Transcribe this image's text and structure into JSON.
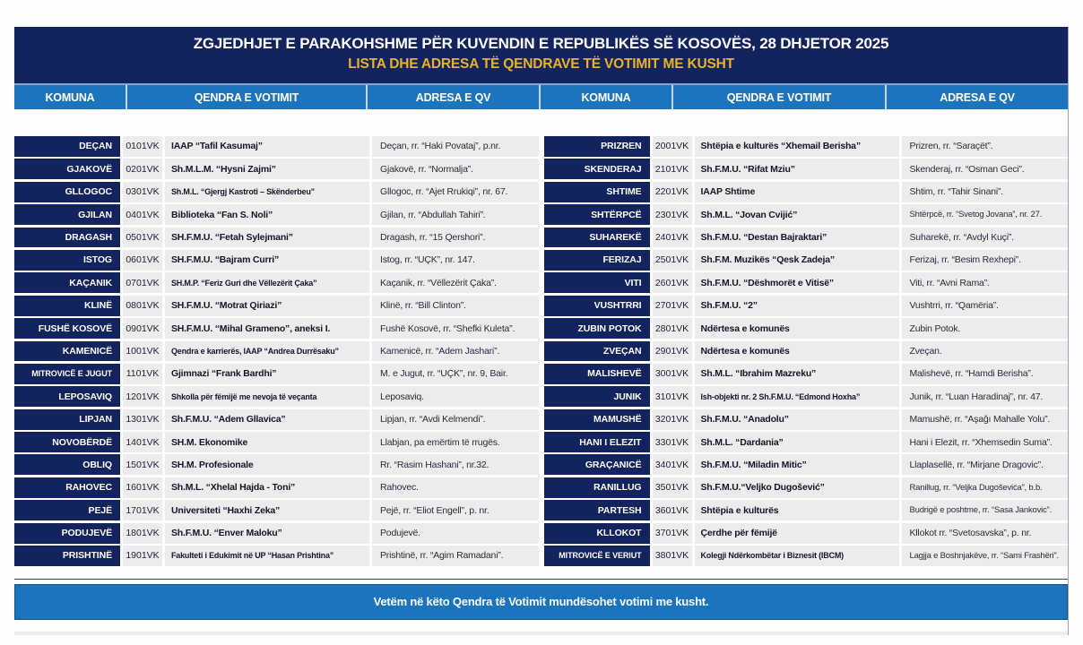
{
  "header": {
    "title": "ZGJEDHJET E PARAKOHSHME PËR KUVENDIN E REPUBLIKËS SË KOSOVËS, 28 DHJETOR 2025",
    "subtitle": "LISTA DHE ADRESA TË QENDRAVE TË VOTIMIT ME KUSHT"
  },
  "columns": {
    "komuna": "KOMUNA",
    "qendra": "QENDRA E VOTIMIT",
    "adresa": "ADRESA E QV"
  },
  "colors": {
    "navy": "#13235d",
    "blue": "#1b74bc",
    "gold": "#e8b22a",
    "cell_bg": "#ececec"
  },
  "left_table": {
    "rows": [
      {
        "komuna": "DEÇAN",
        "code": "0101VK",
        "qendra": "IAAP “Tafil Kasumaj”",
        "adresa": "Deçan, rr. “Haki Povataj”, p.nr."
      },
      {
        "komuna": "GJAKOVË",
        "code": "0201VK",
        "qendra": "Sh.M.L.M. “Hysni Zajmi”",
        "adresa": "Gjakovë, rr. “Normalja”."
      },
      {
        "komuna": "GLLOGOC",
        "code": "0301VK",
        "qendra": "Sh.M.L. “Gjergj Kastroti – Skënderbeu”",
        "adresa": "Gllogoc, rr. “Ajet Rrukiqi”, nr. 67."
      },
      {
        "komuna": "GJILAN",
        "code": "0401VK",
        "qendra": "Biblioteka “Fan S. Noli”",
        "adresa": "Gjilan, rr. “Abdullah Tahiri”."
      },
      {
        "komuna": "DRAGASH",
        "code": "0501VK",
        "qendra": "SH.F.M.U. “Fetah Sylejmani”",
        "adresa": "Dragash, rr. “15 Qershori”."
      },
      {
        "komuna": "ISTOG",
        "code": "0601VK",
        "qendra": "SH.F.M.U. “Bajram Curri”",
        "adresa": "Istog, rr. “UÇK”, nr. 147."
      },
      {
        "komuna": "KAÇANIK",
        "code": "0701VK",
        "qendra": "SH.M.P. “Feriz Guri dhe Vëllezërit Çaka”",
        "adresa": "Kaçanik, rr. “Vëllezërit Çaka”."
      },
      {
        "komuna": "KLINË",
        "code": "0801VK",
        "qendra": "SH.F.M.U. “Motrat Qiriazi”",
        "adresa": "Klinë, rr. “Bill Clinton”."
      },
      {
        "komuna": "FUSHË KOSOVË",
        "code": "0901VK",
        "qendra": "SH.F.M.U. “Mihal Grameno”, aneksi I.",
        "adresa": "Fushë Kosovë, rr. “Shefki Kuleta”."
      },
      {
        "komuna": "KAMENICË",
        "code": "1001VK",
        "qendra": "Qendra e karrierës, IAAP “Andrea Durrësaku”",
        "adresa": "Kamenicë, rr. “Adem Jashari”."
      },
      {
        "komuna": "MITROVICË E JUGUT",
        "code": "1101VK",
        "qendra": "Gjimnazi “Frank Bardhi”",
        "adresa": "M. e Jugut, rr. “UÇK”, nr. 9, Bair."
      },
      {
        "komuna": "LEPOSAVIQ",
        "code": "1201VK",
        "qendra": "Shkolla për fëmijë me nevoja të veçanta",
        "adresa": "Leposaviq."
      },
      {
        "komuna": "LIPJAN",
        "code": "1301VK",
        "qendra": "Sh.F.M.U. “Adem Gllavica”",
        "adresa": "Lipjan, rr. “Avdi Kelmendi”."
      },
      {
        "komuna": "NOVOBËRDË",
        "code": "1401VK",
        "qendra": "SH.M. Ekonomike",
        "adresa": "Llabjan, pa emërtim të rrugës."
      },
      {
        "komuna": "OBLIQ",
        "code": "1501VK",
        "qendra": "SH.M. Profesionale",
        "adresa": "Rr. “Rasim Hashani”, nr.32."
      },
      {
        "komuna": "RAHOVEC",
        "code": "1601VK",
        "qendra": "Sh.M.L. “Xhelal Hajda - Toni”",
        "adresa": "Rahovec."
      },
      {
        "komuna": "PEJË",
        "code": "1701VK",
        "qendra": "Universiteti “Haxhi Zeka”",
        "adresa": "Pejë, rr. “Eliot Engell”, p. nr."
      },
      {
        "komuna": "PODUJEVË",
        "code": "1801VK",
        "qendra": "Sh.F.M.U. “Enver Maloku”",
        "adresa": "Podujevë."
      },
      {
        "komuna": "PRISHTINË",
        "code": "1901VK",
        "qendra": "Fakulteti i Edukimit në UP “Hasan Prishtina”",
        "adresa": "Prishtinë, rr. “Agim Ramadani”."
      }
    ]
  },
  "right_table": {
    "rows": [
      {
        "komuna": "PRIZREN",
        "code": "2001VK",
        "qendra": "Shtëpia e kulturës “Xhemail Berisha”",
        "adresa": "Prizren, rr. “Saraçët”."
      },
      {
        "komuna": "SKENDERAJ",
        "code": "2101VK",
        "qendra": "Sh.F.M.U. “Rifat Mziu”",
        "adresa": "Skenderaj, rr. “Osman Geci”."
      },
      {
        "komuna": "SHTIME",
        "code": "2201VK",
        "qendra": "IAAP Shtime",
        "adresa": "Shtim, rr. “Tahir Sinani”."
      },
      {
        "komuna": "SHTËRPCË",
        "code": "2301VK",
        "qendra": "Sh.M.L. “Jovan Cvijić”",
        "adresa": "Shtërpcë, rr. “Svetog Jovana”, nr. 27."
      },
      {
        "komuna": "SUHAREKË",
        "code": "2401VK",
        "qendra": "Sh.F.M.U. “Destan Bajraktari”",
        "adresa": "Suharekë, rr. “Avdyl Kuçi”."
      },
      {
        "komuna": "FERIZAJ",
        "code": "2501VK",
        "qendra": "Sh.F.M. Muzikës “Qesk Zadeja”",
        "adresa": "Ferizaj, rr. “Besim Rexhepi”."
      },
      {
        "komuna": "VITI",
        "code": "2601VK",
        "qendra": "Sh.F.M.U. “Dëshmorët e Vitisë”",
        "adresa": "Viti, rr. “Avni Rama”."
      },
      {
        "komuna": "VUSHTRRI",
        "code": "2701VK",
        "qendra": "Sh.F.M.U. “2”",
        "adresa": "Vushtrri, rr. “Qamëria”."
      },
      {
        "komuna": "ZUBIN POTOK",
        "code": "2801VK",
        "qendra": "Ndërtesa e komunës",
        "adresa": "Zubin Potok."
      },
      {
        "komuna": "ZVEÇAN",
        "code": "2901VK",
        "qendra": "Ndërtesa e komunës",
        "adresa": "Zveçan."
      },
      {
        "komuna": "MALISHEVË",
        "code": "3001VK",
        "qendra": "Sh.M.L. “Ibrahim Mazreku”",
        "adresa": "Malishevë, rr. “Hamdi Berisha”."
      },
      {
        "komuna": "JUNIK",
        "code": "3101VK",
        "qendra": "Ish-objekti nr. 2 Sh.F.M.U. “Edmond Hoxha”",
        "adresa": "Junik, rr. “Luan Haradinaj”, nr. 47."
      },
      {
        "komuna": "MAMUSHË",
        "code": "3201VK",
        "qendra": "Sh.F.M.U. “Anadolu”",
        "adresa": "Mamushë, rr. “Aşağı Mahalle Yolu”."
      },
      {
        "komuna": "HANI I ELEZIT",
        "code": "3301VK",
        "qendra": "Sh.M.L. “Dardania”",
        "adresa": "Hani i Elezit, rr. “Xhemsedin Suma”."
      },
      {
        "komuna": "GRAÇANICË",
        "code": "3401VK",
        "qendra": "Sh.F.M.U. “Miladin Mitic”",
        "adresa": "Llaplasellë, rr. “Mirjane Dragovic”."
      },
      {
        "komuna": "RANILLUG",
        "code": "3501VK",
        "qendra": "Sh.F.M.U.“Veljko Dugošević”",
        "adresa": "Ranillug, rr. “Veljka Dugoševića”, b.b."
      },
      {
        "komuna": "PARTESH",
        "code": "3601VK",
        "qendra": "Shtëpia e kulturës",
        "adresa": "Budrigë e poshtme, rr.  “Sasa Jankovic”."
      },
      {
        "komuna": "KLLOKOT",
        "code": "3701VK",
        "qendra": "Çerdhe për fëmijë",
        "adresa": "Kllokot rr. “Svetosavska”, p. nr."
      },
      {
        "komuna": "MITROVICË E VERIUT",
        "code": "3801VK",
        "qendra": "Kolegji Ndërkombëtar i Biznesit (IBCM)",
        "adresa": "Lagjja e Boshnjakëve, rr. “Sami Frashëri”."
      }
    ]
  },
  "footer": {
    "note": "Vetëm në këto Qendra të Votimit mundësohet votimi me kusht."
  }
}
